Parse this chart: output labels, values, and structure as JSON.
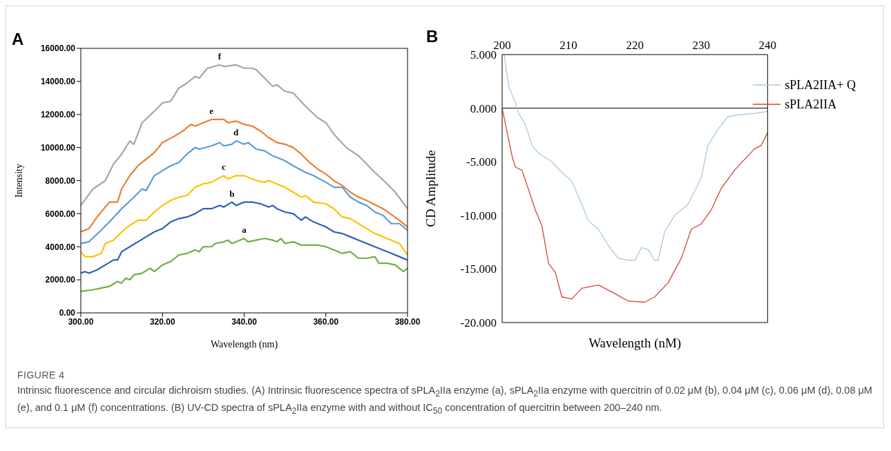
{
  "chart_data": [
    {
      "type": "line",
      "title": "A",
      "xlabel": "Wavelength (nm)",
      "ylabel": "Intensity",
      "xlim": [
        300,
        380
      ],
      "xticks": [
        {
          "value": 300,
          "label": "300.00"
        },
        {
          "value": 320,
          "label": "320.00"
        },
        {
          "value": 340,
          "label": "340.00"
        },
        {
          "value": 360,
          "label": "360.00"
        },
        {
          "value": 380,
          "label": "380.00"
        }
      ],
      "ylim": [
        0,
        16000
      ],
      "yticks": [
        {
          "value": 0,
          "label": "0.00"
        },
        {
          "value": 2000,
          "label": "2000.00"
        },
        {
          "value": 4000,
          "label": "4000.00"
        },
        {
          "value": 6000,
          "label": "6000.00"
        },
        {
          "value": 8000,
          "label": "8000.00"
        },
        {
          "value": 10000,
          "label": "10000.00"
        },
        {
          "value": 12000,
          "label": "12000.00"
        },
        {
          "value": 14000,
          "label": "14000.00"
        },
        {
          "value": 16000,
          "label": "16000.00"
        }
      ],
      "series": [
        {
          "name": "f",
          "color": "#a5a5a5",
          "x": [
            300,
            303,
            306,
            308,
            310,
            312,
            313,
            315,
            318,
            320,
            322,
            324,
            326,
            328,
            329,
            331,
            334,
            335,
            338,
            340,
            342,
            343,
            345,
            347,
            348,
            350,
            352,
            355,
            358,
            360,
            362,
            365,
            368,
            370,
            372,
            375,
            377,
            380
          ],
          "values": [
            6500,
            7500,
            8000,
            9000,
            9600,
            10400,
            10200,
            11500,
            12200,
            12700,
            12800,
            13600,
            13900,
            14300,
            14200,
            14800,
            15000,
            14900,
            15000,
            14800,
            14800,
            14700,
            14200,
            13700,
            13800,
            13400,
            13300,
            12500,
            11800,
            11500,
            10800,
            10000,
            9500,
            9000,
            8500,
            7800,
            7300,
            6300
          ]
        },
        {
          "name": "e",
          "color": "#ed7d31",
          "x": [
            300,
            302,
            304,
            307,
            309,
            310,
            312,
            314,
            316,
            318,
            320,
            323,
            325,
            327,
            328,
            330,
            332,
            335,
            336,
            338,
            340,
            342,
            344,
            346,
            348,
            350,
            352,
            354,
            356,
            358,
            360,
            362,
            364,
            366,
            368,
            370,
            374,
            378,
            380
          ],
          "values": [
            4900,
            5100,
            5800,
            6700,
            6700,
            7500,
            8300,
            8900,
            9300,
            9700,
            10300,
            10700,
            11000,
            11400,
            11300,
            11500,
            11700,
            11700,
            11500,
            11600,
            11400,
            11300,
            11000,
            10600,
            10300,
            10200,
            10000,
            9600,
            9100,
            8700,
            8400,
            8000,
            7700,
            7300,
            7000,
            6800,
            6300,
            5600,
            5200
          ]
        },
        {
          "name": "d",
          "color": "#5b9bd5",
          "x": [
            300,
            302,
            305,
            307,
            310,
            313,
            315,
            316,
            318,
            320,
            322,
            324,
            326,
            328,
            329,
            332,
            334,
            335,
            337,
            338,
            340,
            341,
            343,
            345,
            347,
            350,
            352,
            355,
            357,
            360,
            362,
            364,
            366,
            368,
            370,
            372,
            374,
            376,
            378,
            380
          ],
          "values": [
            4200,
            4300,
            5000,
            5500,
            6300,
            7000,
            7500,
            7400,
            8300,
            8600,
            8900,
            9100,
            9600,
            10000,
            9900,
            10100,
            10300,
            10100,
            10200,
            10400,
            10200,
            10300,
            9900,
            9800,
            9500,
            9200,
            8900,
            8500,
            8300,
            7900,
            7600,
            7600,
            7000,
            6700,
            6500,
            6100,
            5900,
            5400,
            5400,
            5000
          ]
        },
        {
          "name": "c",
          "color": "#ffc000",
          "x": [
            300,
            301,
            303,
            305,
            306,
            308,
            310,
            312,
            314,
            316,
            318,
            320,
            322,
            324,
            326,
            328,
            330,
            332,
            335,
            336,
            338,
            340,
            341,
            343,
            345,
            346,
            348,
            350,
            352,
            354,
            355,
            357,
            360,
            362,
            364,
            366,
            368,
            370,
            372,
            375,
            378,
            380
          ],
          "values": [
            3700,
            3400,
            3400,
            3600,
            4200,
            4400,
            4900,
            5300,
            5600,
            5600,
            6100,
            6500,
            6800,
            7000,
            7100,
            7600,
            7800,
            7900,
            8300,
            8100,
            8300,
            8300,
            8200,
            8000,
            7900,
            8000,
            7800,
            7600,
            7300,
            7000,
            7100,
            6700,
            6600,
            6300,
            5800,
            5700,
            5400,
            5100,
            4800,
            4500,
            4200,
            3500
          ]
        },
        {
          "name": "b",
          "color": "#2e5fb8",
          "x": [
            300,
            301,
            302,
            304,
            306,
            308,
            309,
            310,
            312,
            314,
            316,
            318,
            320,
            322,
            324,
            326,
            328,
            330,
            332,
            334,
            335,
            337,
            338,
            340,
            342,
            344,
            346,
            347,
            348,
            350,
            352,
            354,
            355,
            357,
            360,
            362,
            364,
            366,
            368,
            370,
            372,
            374,
            376,
            378,
            380
          ],
          "values": [
            2400,
            2500,
            2400,
            2600,
            2900,
            3200,
            3200,
            3700,
            4000,
            4300,
            4600,
            4900,
            5100,
            5500,
            5700,
            5800,
            6000,
            6300,
            6300,
            6500,
            6400,
            6700,
            6500,
            6700,
            6700,
            6600,
            6400,
            6500,
            6300,
            6100,
            6000,
            5600,
            5800,
            5500,
            5200,
            4900,
            4800,
            4600,
            4400,
            4200,
            4000,
            3800,
            3600,
            3400,
            3200
          ]
        },
        {
          "name": "a",
          "color": "#70ad47",
          "x": [
            300,
            303,
            305,
            307,
            309,
            310,
            311,
            312,
            313,
            315,
            317,
            318,
            320,
            322,
            324,
            326,
            328,
            329,
            330,
            332,
            333,
            335,
            336,
            337,
            338,
            340,
            341,
            343,
            345,
            347,
            348,
            349,
            350,
            352,
            354,
            356,
            358,
            360,
            362,
            364,
            366,
            368,
            370,
            372,
            373,
            375,
            377,
            379,
            380
          ],
          "values": [
            1300,
            1400,
            1500,
            1600,
            1900,
            1800,
            2100,
            2000,
            2300,
            2400,
            2700,
            2500,
            2900,
            3100,
            3500,
            3600,
            3800,
            3700,
            4000,
            4000,
            4200,
            4300,
            4400,
            4200,
            4300,
            4500,
            4300,
            4400,
            4500,
            4400,
            4300,
            4500,
            4200,
            4300,
            4100,
            4100,
            4100,
            4000,
            3800,
            3600,
            3700,
            3300,
            3300,
            3400,
            3000,
            3000,
            2900,
            2500,
            2700
          ]
        }
      ]
    },
    {
      "type": "line",
      "title": "B",
      "xlabel": "Wavelength (nM)",
      "ylabel": "CD Amplitude",
      "legend": "top right",
      "xlim": [
        200,
        240
      ],
      "xticks": [
        200,
        210,
        220,
        230,
        240
      ],
      "ylim": [
        -20,
        5
      ],
      "yticks": [
        {
          "value": -20,
          "label": "-20.000"
        },
        {
          "value": -15,
          "label": "-15.000"
        },
        {
          "value": -10,
          "label": "-10.000"
        },
        {
          "value": -5,
          "label": "-5.000"
        },
        {
          "value": 0,
          "label": "0.000"
        },
        {
          "value": 5,
          "label": "5.000"
        }
      ],
      "ref_lines": [
        {
          "axis": "y",
          "value": 0,
          "color": "#000000"
        }
      ],
      "series": [
        {
          "name": "sPLA2IIA+ Q",
          "color": "#a9c9e4",
          "x": [
            200.3,
            201,
            202,
            202.5,
            203.5,
            204.5,
            205.5,
            207.5,
            209,
            210.5,
            212,
            213,
            214.5,
            216,
            217.5,
            219,
            220,
            221,
            222,
            223,
            223.5,
            224.5,
            226,
            228,
            230,
            231,
            232.5,
            234,
            236,
            238,
            240
          ],
          "values": [
            5,
            2,
            0.5,
            -0.5,
            -1.5,
            -3.5,
            -4.2,
            -5,
            -6,
            -6.8,
            -9,
            -10.5,
            -11.3,
            -12.8,
            -14,
            -14.2,
            -14.2,
            -13,
            -13.2,
            -14.2,
            -14.2,
            -11.5,
            -10,
            -9,
            -6.5,
            -3.5,
            -2,
            -0.8,
            -0.6,
            -0.5,
            -0.3
          ]
        },
        {
          "name": "sPLA2IIA",
          "color": "#d9403a",
          "x": [
            200,
            201.5,
            202,
            203,
            205,
            206,
            207,
            208,
            209,
            210.5,
            212,
            214.5,
            217,
            219,
            221.5,
            223,
            225,
            227,
            228.5,
            230,
            231.5,
            233,
            235,
            236.5,
            238,
            239,
            240
          ],
          "values": [
            0,
            -4.5,
            -5.5,
            -5.8,
            -9.5,
            -11,
            -14.5,
            -15.3,
            -17.6,
            -17.8,
            -16.8,
            -16.5,
            -17.3,
            -18,
            -18.1,
            -17.6,
            -16.3,
            -14,
            -11.3,
            -10.8,
            -9.5,
            -7.5,
            -5.8,
            -4.8,
            -3.8,
            -3.5,
            -2.3
          ]
        }
      ],
      "annotations": [
        "FIGURE 4",
        "Intrinsic fluorescence and circular dichroism studies. (A) Intrinsic fluorescence spectra of sPLA$_{2}$IIa enzyme (a), sPLA$_{2}$IIa enzyme with quercitrin of 0.02 μM (b), 0.04 μM (c), 0.06 μM (d), 0.08 μM (e), and 0.1 μM (f) concentrations. (B) UV-CD spectra of sPLA$_{2}$IIa enzyme with and without IC$_{50}$ concentration of quercitrin between 200–240 nm."
      ]
    }
  ]
}
